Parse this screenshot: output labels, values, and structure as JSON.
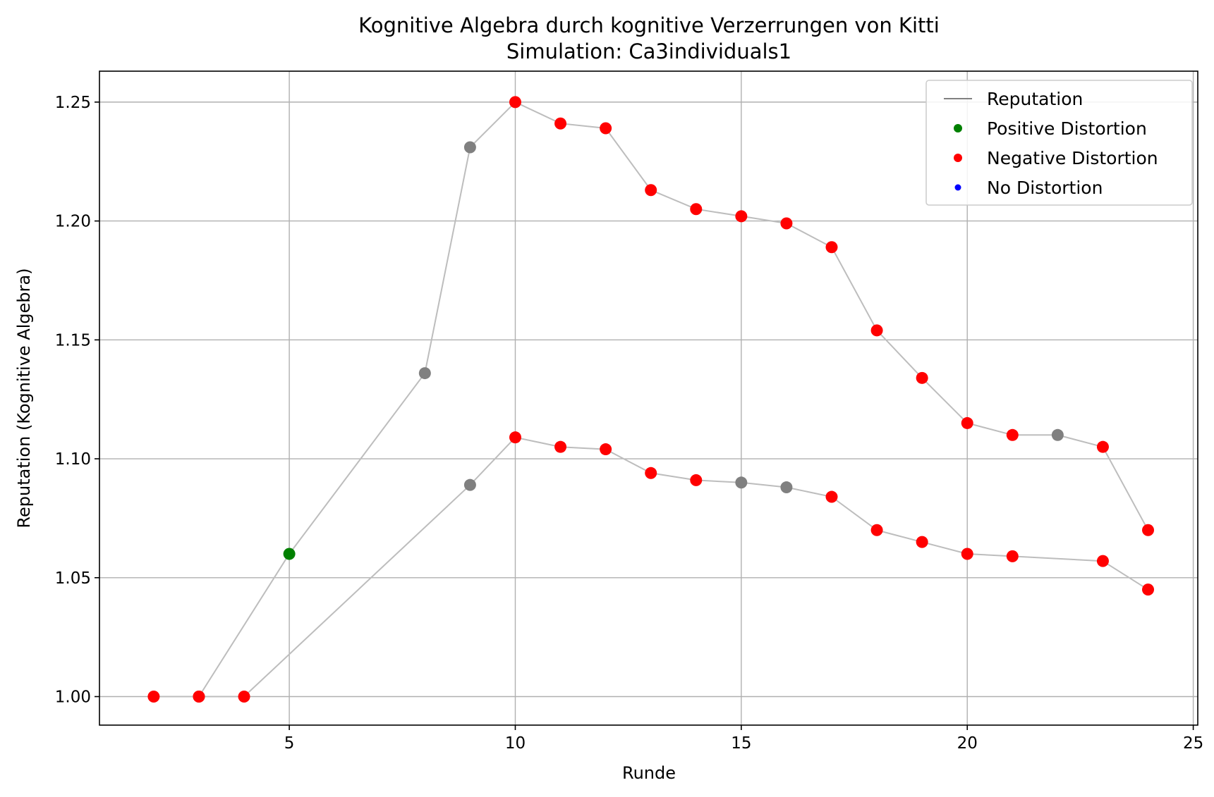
{
  "chart_data": {
    "type": "scatter",
    "title": "Kognitive Algebra durch kognitive Verzerrungen von Kitti",
    "subtitle": "Simulation: Ca3individuals1",
    "xlabel": "Runde",
    "ylabel": "Reputation (Kognitive Algebra)",
    "xlim": [
      0.8,
      25.1
    ],
    "ylim": [
      0.988,
      1.263
    ],
    "xticks": [
      5,
      10,
      15,
      20,
      25
    ],
    "yticks": [
      1.0,
      1.05,
      1.1,
      1.15,
      1.2,
      1.25
    ],
    "ytick_labels": [
      "1.00",
      "1.05",
      "1.10",
      "1.15",
      "1.20",
      "1.25"
    ],
    "grid": true,
    "legend_position": "top-right",
    "legend": [
      {
        "label": "Reputation",
        "kind": "line",
        "color": "#808080"
      },
      {
        "label": "Positive Distortion",
        "kind": "marker",
        "color": "#008000"
      },
      {
        "label": "Negative Distortion",
        "kind": "marker",
        "color": "#ff0000"
      },
      {
        "label": "No Distortion",
        "kind": "marker",
        "color": "#0000ff"
      }
    ],
    "line_color": "#bdbdbd",
    "colors": {
      "positive": "#008000",
      "negative": "#ff0000",
      "none": "#0000ff",
      "neutral": "#808080"
    },
    "series": [
      {
        "points": [
          {
            "x": 2,
            "y": 1.0,
            "d": "negative"
          },
          {
            "x": 3,
            "y": 1.0,
            "d": "negative"
          },
          {
            "x": 5,
            "y": 1.06,
            "d": "positive"
          },
          {
            "x": 8,
            "y": 1.136,
            "d": "neutral"
          },
          {
            "x": 9,
            "y": 1.231,
            "d": "neutral"
          },
          {
            "x": 10,
            "y": 1.25,
            "d": "negative"
          },
          {
            "x": 11,
            "y": 1.241,
            "d": "negative"
          },
          {
            "x": 12,
            "y": 1.239,
            "d": "negative"
          },
          {
            "x": 13,
            "y": 1.213,
            "d": "negative"
          },
          {
            "x": 14,
            "y": 1.205,
            "d": "negative"
          },
          {
            "x": 15,
            "y": 1.202,
            "d": "negative"
          },
          {
            "x": 16,
            "y": 1.199,
            "d": "negative"
          },
          {
            "x": 17,
            "y": 1.189,
            "d": "negative"
          },
          {
            "x": 18,
            "y": 1.154,
            "d": "negative"
          },
          {
            "x": 19,
            "y": 1.134,
            "d": "negative"
          },
          {
            "x": 20,
            "y": 1.115,
            "d": "negative"
          },
          {
            "x": 21,
            "y": 1.11,
            "d": "negative"
          },
          {
            "x": 22,
            "y": 1.11,
            "d": "neutral"
          },
          {
            "x": 23,
            "y": 1.105,
            "d": "negative"
          },
          {
            "x": 24,
            "y": 1.07,
            "d": "negative"
          }
        ]
      },
      {
        "points": [
          {
            "x": 3,
            "y": 1.0,
            "d": "negative"
          },
          {
            "x": 4,
            "y": 1.0,
            "d": "negative"
          },
          {
            "x": 9,
            "y": 1.089,
            "d": "neutral"
          },
          {
            "x": 10,
            "y": 1.109,
            "d": "negative"
          },
          {
            "x": 11,
            "y": 1.105,
            "d": "negative"
          },
          {
            "x": 12,
            "y": 1.104,
            "d": "negative"
          },
          {
            "x": 13,
            "y": 1.094,
            "d": "negative"
          },
          {
            "x": 14,
            "y": 1.091,
            "d": "negative"
          },
          {
            "x": 15,
            "y": 1.09,
            "d": "neutral"
          },
          {
            "x": 16,
            "y": 1.088,
            "d": "neutral"
          },
          {
            "x": 17,
            "y": 1.084,
            "d": "negative"
          },
          {
            "x": 18,
            "y": 1.07,
            "d": "negative"
          },
          {
            "x": 19,
            "y": 1.065,
            "d": "negative"
          },
          {
            "x": 20,
            "y": 1.06,
            "d": "negative"
          },
          {
            "x": 21,
            "y": 1.059,
            "d": "negative"
          },
          {
            "x": 23,
            "y": 1.057,
            "d": "negative"
          },
          {
            "x": 24,
            "y": 1.045,
            "d": "negative"
          }
        ]
      }
    ]
  }
}
